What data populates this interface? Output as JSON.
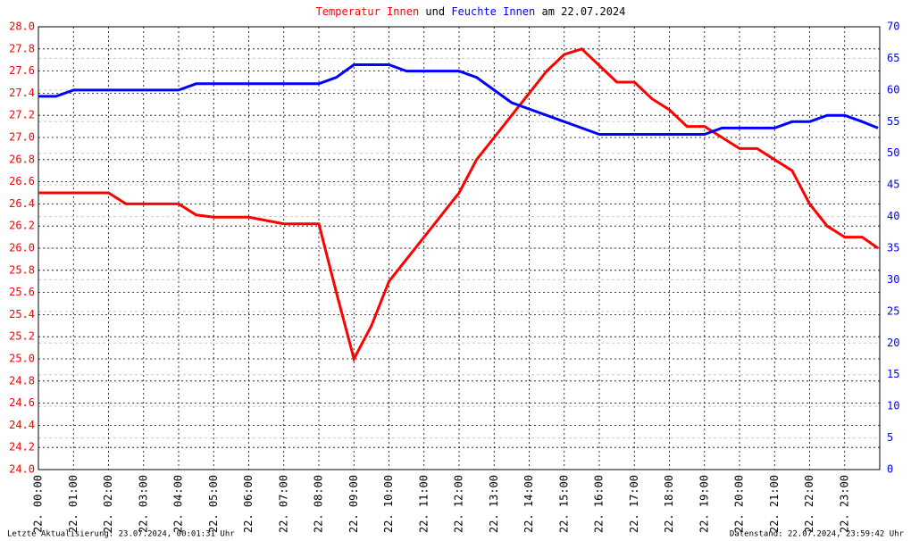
{
  "chart_data": {
    "type": "line",
    "title_connector": "und",
    "title_date": "am 22.07.2024",
    "footer_left": "Letzte Aktualisierung: 23.07.2024, 00:01:31 Uhr",
    "footer_right": "Datenstand: 22.07.2024, 23:59:42 Uhr",
    "grid": true,
    "x": [
      0,
      0.5,
      1,
      1.5,
      2,
      2.5,
      3,
      3.5,
      4,
      4.5,
      5,
      5.5,
      6,
      6.5,
      7,
      7.5,
      8,
      8.5,
      9,
      9.5,
      10,
      10.5,
      11,
      11.5,
      12,
      12.5,
      13,
      13.5,
      14,
      14.5,
      15,
      15.5,
      16,
      16.5,
      17,
      17.5,
      18,
      18.5,
      19,
      19.5,
      20,
      20.5,
      21,
      21.5,
      22,
      22.5,
      23,
      23.5,
      23.95
    ],
    "xlim": [
      0,
      24
    ],
    "xticks": [
      {
        "value": 0,
        "label": "22. 00:00"
      },
      {
        "value": 1,
        "label": "22. 01:00"
      },
      {
        "value": 2,
        "label": "22. 02:00"
      },
      {
        "value": 3,
        "label": "22. 03:00"
      },
      {
        "value": 4,
        "label": "22. 04:00"
      },
      {
        "value": 5,
        "label": "22. 05:00"
      },
      {
        "value": 6,
        "label": "22. 06:00"
      },
      {
        "value": 7,
        "label": "22. 07:00"
      },
      {
        "value": 8,
        "label": "22. 08:00"
      },
      {
        "value": 9,
        "label": "22. 09:00"
      },
      {
        "value": 10,
        "label": "22. 10:00"
      },
      {
        "value": 11,
        "label": "22. 11:00"
      },
      {
        "value": 12,
        "label": "22. 12:00"
      },
      {
        "value": 13,
        "label": "22. 13:00"
      },
      {
        "value": 14,
        "label": "22. 14:00"
      },
      {
        "value": 15,
        "label": "22. 15:00"
      },
      {
        "value": 16,
        "label": "22. 16:00"
      },
      {
        "value": 17,
        "label": "22. 17:00"
      },
      {
        "value": 18,
        "label": "22. 18:00"
      },
      {
        "value": 19,
        "label": "22. 19:00"
      },
      {
        "value": 20,
        "label": "22. 20:00"
      },
      {
        "value": 21,
        "label": "22. 21:00"
      },
      {
        "value": 22,
        "label": "22. 22:00"
      },
      {
        "value": 23,
        "label": "22. 23:00"
      }
    ],
    "ylim": [
      24,
      28
    ],
    "yticks": [
      {
        "value": 24,
        "label": "24.0"
      },
      24.2,
      24.4,
      24.6,
      24.8,
      {
        "value": 25,
        "label": "25.0"
      },
      25.2,
      25.4,
      25.6,
      25.8,
      {
        "value": 26,
        "label": "26.0"
      },
      26.2,
      26.4,
      26.6,
      26.8,
      {
        "value": 27,
        "label": "27.0"
      },
      27.2,
      27.4,
      27.6,
      27.8,
      {
        "value": 28,
        "label": "28.0"
      }
    ],
    "y2lim": [
      0,
      70
    ],
    "y2ticks": [
      0,
      5,
      10,
      15,
      20,
      25,
      30,
      35,
      40,
      45,
      50,
      55,
      60,
      65,
      70
    ],
    "series": [
      {
        "name": "Temperatur Innen",
        "color": "#ff0000",
        "values": [
          26.5,
          26.5,
          26.5,
          26.5,
          26.5,
          26.4,
          26.4,
          26.4,
          26.4,
          26.3,
          26.28,
          26.28,
          26.28,
          26.25,
          26.22,
          26.22,
          26.22,
          25.6,
          25.0,
          25.3,
          25.7,
          25.9,
          26.1,
          26.3,
          26.5,
          26.8,
          27.0,
          27.2,
          27.4,
          27.6,
          27.75,
          27.8,
          27.65,
          27.5,
          27.5,
          27.35,
          27.25,
          27.1,
          27.1,
          27.0,
          26.9,
          26.9,
          26.8,
          26.7,
          26.4,
          26.2,
          26.1,
          26.1,
          26.0
        ]
      },
      {
        "name": "Feuchte Innen",
        "color": "#0000ff",
        "axis": "y2",
        "values": [
          59,
          59,
          60,
          60,
          60,
          60,
          60,
          60,
          60,
          61,
          61,
          61,
          61,
          61,
          61,
          61,
          61,
          62,
          64,
          64,
          64,
          63,
          63,
          63,
          63,
          62,
          60,
          58,
          57,
          56,
          55,
          54,
          53,
          53,
          53,
          53,
          53,
          53,
          53,
          54,
          54,
          54,
          54,
          55,
          55,
          56,
          56,
          55,
          54
        ]
      }
    ]
  }
}
